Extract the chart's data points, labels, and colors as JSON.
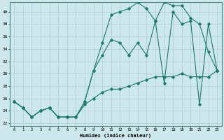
{
  "xlabel": "Humidex (Indice chaleur)",
  "bg_color": "#cce8ec",
  "grid_color": "#b0d0d8",
  "line_color": "#1a7a6e",
  "xlim": [
    -0.5,
    23.5
  ],
  "ylim": [
    21.5,
    41.5
  ],
  "xticks": [
    0,
    1,
    2,
    3,
    4,
    5,
    6,
    7,
    8,
    9,
    10,
    11,
    12,
    13,
    14,
    15,
    16,
    17,
    18,
    19,
    20,
    21,
    22,
    23
  ],
  "yticks": [
    22,
    24,
    26,
    28,
    30,
    32,
    34,
    36,
    38,
    40
  ],
  "line1_x": [
    0,
    1,
    2,
    3,
    4,
    5,
    6,
    7,
    8,
    9,
    10,
    11,
    12,
    13,
    14,
    15,
    16,
    17,
    18,
    19,
    20,
    21,
    22,
    23
  ],
  "line1_y": [
    25.5,
    24.5,
    23.0,
    24.0,
    24.5,
    23.0,
    23.0,
    23.0,
    25.5,
    30.5,
    35.0,
    39.5,
    40.0,
    40.5,
    41.5,
    40.5,
    38.5,
    41.5,
    41.0,
    41.0,
    39.0,
    38.0,
    33.5,
    30.5
  ],
  "line2_x": [
    0,
    1,
    2,
    3,
    4,
    5,
    6,
    7,
    8,
    9,
    10,
    11,
    12,
    13,
    14,
    15,
    16,
    17,
    18,
    19,
    20,
    21,
    22,
    23
  ],
  "line2_y": [
    25.5,
    24.5,
    23.0,
    24.0,
    24.5,
    23.0,
    23.0,
    23.0,
    25.5,
    30.5,
    33.0,
    35.5,
    35.0,
    33.0,
    35.0,
    33.0,
    38.5,
    28.5,
    40.0,
    38.0,
    38.5,
    25.0,
    38.0,
    30.5
  ],
  "line3_x": [
    0,
    1,
    2,
    3,
    4,
    5,
    6,
    7,
    8,
    9,
    10,
    11,
    12,
    13,
    14,
    15,
    16,
    17,
    18,
    19,
    20,
    21,
    22,
    23
  ],
  "line3_y": [
    25.5,
    24.5,
    23.0,
    24.0,
    24.5,
    23.0,
    23.0,
    23.0,
    25.0,
    26.0,
    27.0,
    27.5,
    27.5,
    28.0,
    28.5,
    29.0,
    29.5,
    29.5,
    29.5,
    30.0,
    29.5,
    29.5,
    29.5,
    30.5
  ]
}
